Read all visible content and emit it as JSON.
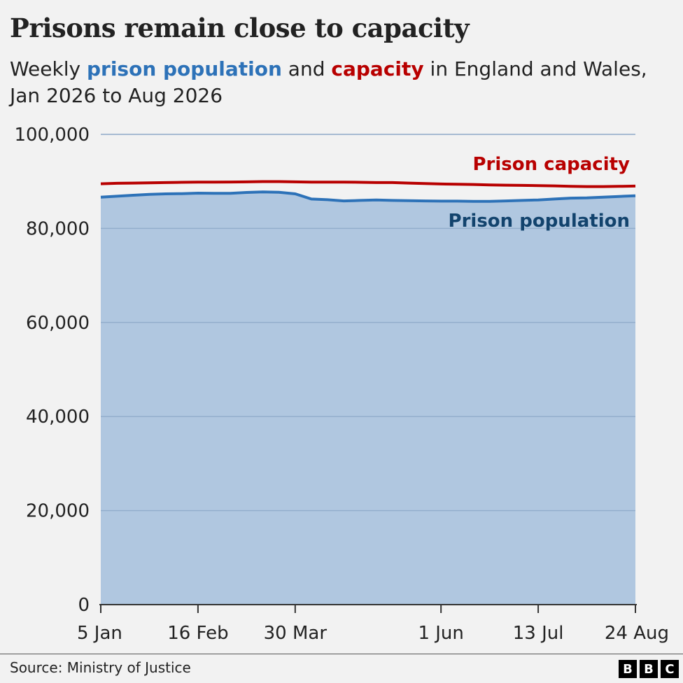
{
  "header": {
    "title": "Prisons remain close to capacity",
    "subtitle_part1": "Weekly ",
    "subtitle_population": "prison population",
    "subtitle_part2": " and ",
    "subtitle_capacity": "capacity",
    "subtitle_part3": " in England and Wales, Jan 2026 to Aug 2026"
  },
  "colors": {
    "population_line": "#2d72b8",
    "population_fill": "#b0c7e0",
    "population_label": "#12436d",
    "capacity_line": "#b80000",
    "capacity_label": "#b80000",
    "gridline": "#cccccc",
    "gridline_in_area": "#93aecd"
  },
  "chart_data": {
    "type": "area",
    "title": "Prisons remain close to capacity",
    "xlabel": "",
    "ylabel": "",
    "ylim": [
      0,
      100000
    ],
    "yticks": [
      0,
      20000,
      40000,
      60000,
      80000,
      100000
    ],
    "ytick_labels": [
      "0",
      "20,000",
      "40,000",
      "60,000",
      "80,000",
      "100,000"
    ],
    "xticks": [
      "2026-01-05",
      "2026-02-16",
      "2026-03-30",
      "2026-06-01",
      "2026-07-13",
      "2026-08-24"
    ],
    "xtick_labels": [
      "5 Jan",
      "16 Feb",
      "30 Mar",
      "1 Jun",
      "13 Jul",
      "24 Aug"
    ],
    "x": [
      "2026-01-05",
      "2026-01-12",
      "2026-01-19",
      "2026-01-26",
      "2026-02-02",
      "2026-02-09",
      "2026-02-16",
      "2026-02-23",
      "2026-03-02",
      "2026-03-09",
      "2026-03-16",
      "2026-03-23",
      "2026-03-30",
      "2026-04-06",
      "2026-04-13",
      "2026-04-20",
      "2026-04-27",
      "2026-05-04",
      "2026-05-11",
      "2026-05-18",
      "2026-05-25",
      "2026-06-01",
      "2026-06-08",
      "2026-06-15",
      "2026-06-22",
      "2026-06-29",
      "2026-07-06",
      "2026-07-13",
      "2026-07-20",
      "2026-07-27",
      "2026-08-03",
      "2026-08-10",
      "2026-08-17",
      "2026-08-24"
    ],
    "grid": true,
    "legend": "inline labels at right",
    "series": [
      {
        "name": "Prison capacity",
        "values": [
          89500,
          89600,
          89650,
          89700,
          89750,
          89800,
          89850,
          89850,
          89870,
          89900,
          89950,
          89950,
          89900,
          89850,
          89850,
          89850,
          89800,
          89750,
          89750,
          89650,
          89550,
          89450,
          89400,
          89350,
          89250,
          89200,
          89150,
          89100,
          89050,
          88950,
          88900,
          88900,
          88950,
          89000
        ]
      },
      {
        "name": "Prison population",
        "values": [
          86650,
          86850,
          87050,
          87250,
          87350,
          87400,
          87500,
          87450,
          87450,
          87650,
          87750,
          87700,
          87350,
          86250,
          86100,
          85850,
          85950,
          86050,
          85950,
          85900,
          85850,
          85800,
          85800,
          85750,
          85750,
          85850,
          85950,
          86050,
          86250,
          86450,
          86500,
          86650,
          86800,
          86950
        ]
      }
    ]
  },
  "footer": {
    "source": "Source: Ministry of Justice",
    "logo_letters": [
      "B",
      "B",
      "C"
    ]
  }
}
